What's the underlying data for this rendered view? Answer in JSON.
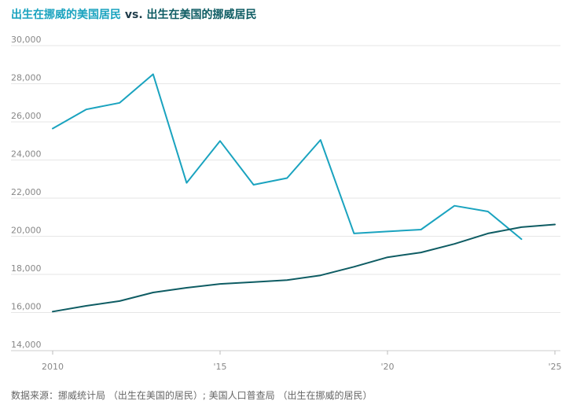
{
  "title": {
    "series_a": "出生在挪威的美国居民",
    "vs": " vs. ",
    "series_b": "出生在美国的挪威居民"
  },
  "footer": {
    "source": "数据来源：挪威统计局 （出生在美国的居民）; 美国人口普查局 （出生在挪威的居民）"
  },
  "colors": {
    "series_a": "#1aa3bf",
    "series_b": "#0e5c63",
    "grid": "#e6e6e6",
    "axis_label": "#888888"
  },
  "chart_data": {
    "type": "line",
    "xlim": [
      2010,
      2025
    ],
    "ylim": [
      14000,
      30000
    ],
    "y_ticks": [
      14000,
      16000,
      18000,
      20000,
      22000,
      24000,
      26000,
      28000,
      30000
    ],
    "y_tick_labels": [
      "14,000",
      "16,000",
      "18,000",
      "20,000",
      "22,000",
      "24,000",
      "26,000",
      "28,000",
      "30,000"
    ],
    "x_ticks": [
      2010,
      2015,
      2020,
      2025
    ],
    "x_tick_labels": [
      "2010",
      "'15",
      "'20",
      "'25"
    ],
    "grid": true,
    "series": [
      {
        "key": "series_a",
        "x": [
          2010,
          2011,
          2012,
          2013,
          2014,
          2015,
          2016,
          2017,
          2018,
          2019,
          2020,
          2021,
          2022,
          2023,
          2024
        ],
        "values": [
          25650,
          26650,
          27000,
          28500,
          22800,
          25000,
          22700,
          23050,
          25050,
          20150,
          20250,
          20350,
          21600,
          21300,
          19850
        ]
      },
      {
        "key": "series_b",
        "x": [
          2010,
          2011,
          2012,
          2013,
          2014,
          2015,
          2016,
          2017,
          2018,
          2019,
          2020,
          2021,
          2022,
          2023,
          2024,
          2025
        ],
        "values": [
          16050,
          16350,
          16600,
          17050,
          17300,
          17500,
          17600,
          17700,
          17950,
          18400,
          18900,
          19150,
          19600,
          20150,
          20480,
          20620
        ]
      }
    ]
  }
}
